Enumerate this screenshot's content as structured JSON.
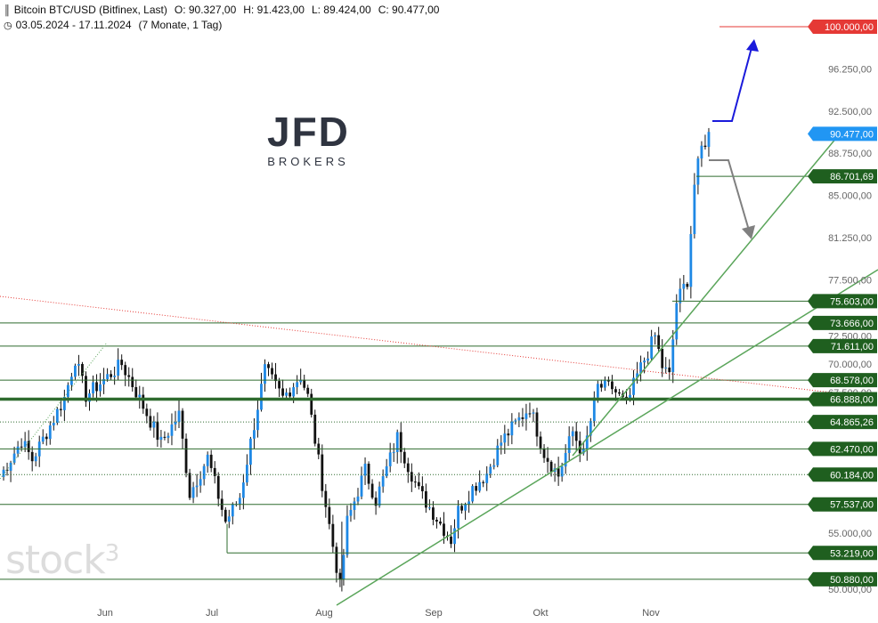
{
  "header": {
    "symbol": "Bitcoin BTC/USD (Bitfinex, Last)",
    "open": "O: 90.327,00",
    "high": "H: 91.423,00",
    "low": "L: 89.424,00",
    "close": "C: 90.477,00",
    "range": "03.05.2024 - 17.11.2024",
    "period": "(7 Monate, 1 Tag)",
    "icons": [
      "candles-icon",
      "clock-icon"
    ]
  },
  "logo": {
    "main": "JFD",
    "sub": "BROKERS"
  },
  "watermark": {
    "text": "stock",
    "sup": "3"
  },
  "chart_data": {
    "type": "candlestick",
    "x_labels": [
      "Jun",
      "Jul",
      "Aug",
      "Sep",
      "Okt",
      "Nov"
    ],
    "y_ticks": [
      "100.000,00",
      "96.250,00",
      "92.500,00",
      "88.750,00",
      "85.000,00",
      "81.250,00",
      "77.500,00",
      "73.750,00",
      "72.500,00",
      "70.000,00",
      "67.500,00",
      "55.000,00",
      "50.000,00"
    ],
    "ylim": [
      49800,
      102000
    ],
    "price_label": {
      "value": 90477,
      "text": "90.477,00",
      "color": "#2196f3"
    },
    "target_label": {
      "value": 100000,
      "text": "100.000,00",
      "color": "#e53935"
    },
    "levels": [
      {
        "value": 86701.69,
        "text": "86.701,69",
        "style": "solid"
      },
      {
        "value": 75603,
        "text": "75.603,00",
        "style": "solid"
      },
      {
        "value": 73666,
        "text": "73.666,00",
        "style": "solid"
      },
      {
        "value": 71611,
        "text": "71.611,00",
        "style": "solid"
      },
      {
        "value": 68578,
        "text": "68.578,00",
        "style": "solid"
      },
      {
        "value": 66888,
        "text": "66.888,00",
        "style": "thick"
      },
      {
        "value": 64865.26,
        "text": "64.865,26",
        "style": "dotted"
      },
      {
        "value": 62470,
        "text": "62.470,00",
        "style": "solid"
      },
      {
        "value": 60184,
        "text": "60.184,00",
        "style": "dotted"
      },
      {
        "value": 57537,
        "text": "57.537,00",
        "style": "solid"
      },
      {
        "value": 53219,
        "text": "53.219,00",
        "style": "solid"
      },
      {
        "value": 50880,
        "text": "50.880,00",
        "style": "solid"
      }
    ],
    "grid": false,
    "colors": {
      "up": "#1e88e5",
      "down": "#111111",
      "level_line": "#2e6b2e",
      "trendline": "#5aa55a",
      "resistance_trend": "#e53935",
      "arrow_up": "#1a1adb",
      "arrow_down": "#808080",
      "label_bg": "#1f5f1f"
    }
  }
}
